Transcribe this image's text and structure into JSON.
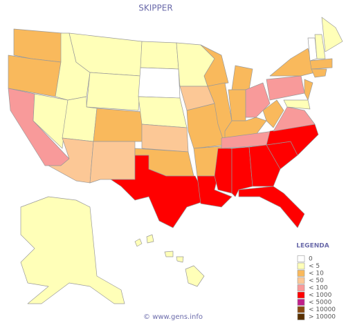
{
  "title": "SKIPPER",
  "legend": {
    "title": "LEGENDA",
    "items": [
      {
        "label": "0",
        "color": "#ffffff"
      },
      {
        "label": "< 5",
        "color": "#ffffb8"
      },
      {
        "label": "< 10",
        "color": "#f9b95c"
      },
      {
        "label": "< 50",
        "color": "#fcc896"
      },
      {
        "label": "< 100",
        "color": "#f89a9a"
      },
      {
        "label": "< 1000",
        "color": "#ff0000"
      },
      {
        "label": "< 5000",
        "color": "#c0208a"
      },
      {
        "label": "< 10000",
        "color": "#8a4a10"
      },
      {
        "label": "> 10000",
        "color": "#5a3000"
      }
    ]
  },
  "footer": "© www.gens.info"
}
